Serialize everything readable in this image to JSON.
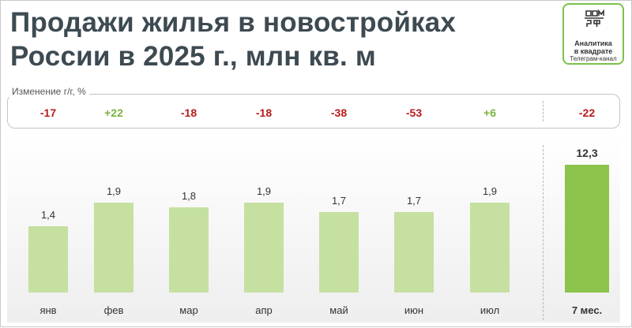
{
  "title_line1": "Продажи жилья в новостройках",
  "title_line2": "России в 2025 г., млн кв. м",
  "logo": {
    "mark": "ДОМ РФ",
    "line1": "Аналитика",
    "line2": "в квадрате",
    "line3": "Телеграм-канал"
  },
  "change_label": "Изменение г/г, %",
  "colors": {
    "positive": "#7cb342",
    "negative": "#b71c1c",
    "bar": "#c5e0a0",
    "bar_total": "#8cc34a",
    "text": "#333333"
  },
  "chart_data": {
    "type": "bar",
    "title": "Продажи жилья в новостройках России в 2025 г., млн кв. м",
    "categories": [
      "янв",
      "фев",
      "мар",
      "апр",
      "май",
      "июн",
      "июл",
      "7 мес."
    ],
    "values": [
      1.4,
      1.9,
      1.8,
      1.9,
      1.7,
      1.7,
      1.9,
      12.3
    ],
    "value_labels": [
      "1,4",
      "1,9",
      "1,8",
      "1,9",
      "1,7",
      "1,7",
      "1,9",
      "12,3"
    ],
    "yoy_change_labels": [
      "-17",
      "+22",
      "-18",
      "-18",
      "-38",
      "-53",
      "+6",
      "-22"
    ],
    "yoy_change": [
      -17,
      22,
      -18,
      -18,
      -38,
      -53,
      6,
      -22
    ],
    "total_category": "7 мес.",
    "grid": false,
    "legend": "none"
  }
}
